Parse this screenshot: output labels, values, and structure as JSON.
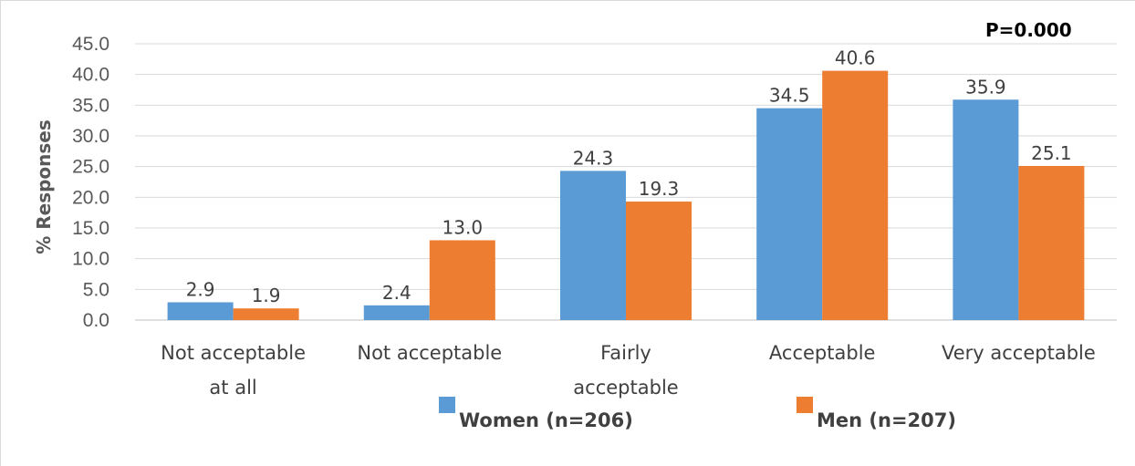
{
  "chart_data": {
    "type": "bar",
    "annotation": "P=0.000",
    "ylabel": "% Responses",
    "xlabel": "",
    "ylim": [
      0,
      45
    ],
    "yticks": [
      "0.0",
      "5.0",
      "10.0",
      "15.0",
      "20.0",
      "25.0",
      "30.0",
      "35.0",
      "40.0",
      "45.0"
    ],
    "categories": [
      [
        "Not acceptable",
        "at all"
      ],
      [
        "Not acceptable"
      ],
      [
        "Fairly",
        "acceptable"
      ],
      [
        "Acceptable"
      ],
      [
        "Very acceptable"
      ]
    ],
    "series": [
      {
        "name": "Women (n=206)",
        "color": "#5B9BD5",
        "values": [
          2.9,
          2.4,
          24.3,
          34.5,
          35.9
        ],
        "labels": [
          "2.9",
          "2.4",
          "24.3",
          "34.5",
          "35.9"
        ]
      },
      {
        "name": "Men (n=207)",
        "color": "#ED7D31",
        "values": [
          1.9,
          13.0,
          19.3,
          40.6,
          25.1
        ],
        "labels": [
          "1.9",
          "13.0",
          "19.3",
          "40.6",
          "25.1"
        ]
      }
    ],
    "grid": true,
    "legend_position": "bottom"
  }
}
